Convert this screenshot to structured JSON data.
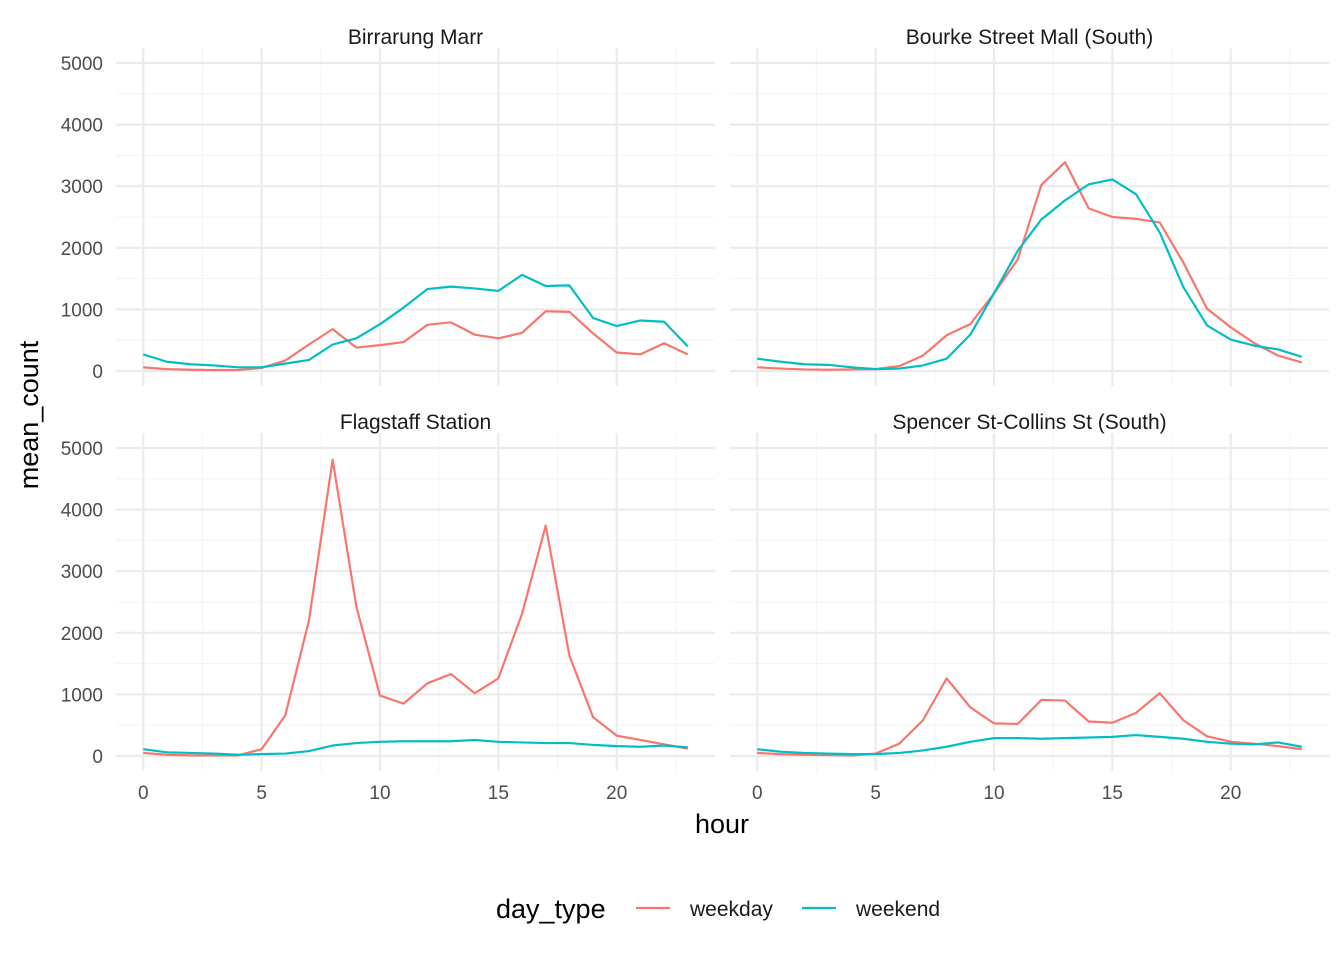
{
  "chart_data": {
    "type": "line",
    "xlabel": "hour",
    "ylabel": "mean_count",
    "xlim": [
      0,
      23
    ],
    "ylim": [
      0,
      5000
    ],
    "x_ticks": [
      0,
      5,
      10,
      15,
      20
    ],
    "y_ticks": [
      0,
      1000,
      2000,
      3000,
      4000,
      5000
    ],
    "grid": true,
    "legend": {
      "title": "day_type",
      "position": "bottom",
      "items": [
        {
          "name": "weekday",
          "color": "#F8766D"
        },
        {
          "name": "weekend",
          "color": "#00BFC4"
        }
      ]
    },
    "x": [
      0,
      1,
      2,
      3,
      4,
      5,
      6,
      7,
      8,
      9,
      10,
      11,
      12,
      13,
      14,
      15,
      16,
      17,
      18,
      19,
      20,
      21,
      22,
      23
    ],
    "panels": [
      {
        "title": "Birrarung Marr",
        "series": [
          {
            "name": "weekday",
            "values": [
              60,
              30,
              20,
              15,
              15,
              50,
              170,
              430,
              680,
              380,
              420,
              470,
              750,
              790,
              590,
              530,
              620,
              970,
              960,
              610,
              300,
              270,
              450,
              270
            ]
          },
          {
            "name": "weekend",
            "values": [
              270,
              150,
              110,
              90,
              60,
              60,
              120,
              180,
              430,
              530,
              760,
              1030,
              1330,
              1370,
              1340,
              1300,
              1560,
              1380,
              1390,
              860,
              730,
              820,
              800,
              400
            ]
          }
        ]
      },
      {
        "title": "Bourke Street Mall (South)",
        "series": [
          {
            "name": "weekday",
            "values": [
              60,
              40,
              25,
              20,
              25,
              30,
              80,
              250,
              580,
              760,
              1260,
              1810,
              3020,
              3390,
              2640,
              2500,
              2470,
              2410,
              1760,
              1010,
              710,
              450,
              250,
              140
            ]
          },
          {
            "name": "weekend",
            "values": [
              200,
              150,
              110,
              100,
              60,
              30,
              40,
              90,
              200,
              590,
              1260,
              1950,
              2460,
              2770,
              3030,
              3110,
              2870,
              2250,
              1360,
              740,
              510,
              410,
              350,
              230
            ]
          }
        ]
      },
      {
        "title": "Flagstaff Station",
        "series": [
          {
            "name": "weekday",
            "values": [
              50,
              20,
              10,
              10,
              10,
              110,
              660,
              2200,
              4810,
              2430,
              980,
              850,
              1180,
              1330,
              1020,
              1260,
              2310,
              3740,
              1630,
              630,
              330,
              260,
              190,
              120
            ]
          },
          {
            "name": "weekend",
            "values": [
              110,
              60,
              50,
              40,
              20,
              30,
              40,
              80,
              170,
              210,
              230,
              240,
              240,
              240,
              260,
              230,
              220,
              210,
              210,
              180,
              160,
              150,
              170,
              140
            ]
          }
        ]
      },
      {
        "title": "Spencer St-Collins St (South)",
        "series": [
          {
            "name": "weekday",
            "values": [
              50,
              30,
              20,
              15,
              10,
              40,
              200,
              580,
              1260,
              790,
              530,
              520,
              910,
              900,
              560,
              540,
              700,
              1020,
              580,
              320,
              230,
              200,
              160,
              110
            ]
          },
          {
            "name": "weekend",
            "values": [
              110,
              70,
              50,
              40,
              30,
              30,
              50,
              90,
              150,
              230,
              290,
              290,
              280,
              290,
              300,
              310,
              340,
              310,
              280,
              230,
              200,
              190,
              220,
              150
            ]
          }
        ]
      }
    ]
  }
}
